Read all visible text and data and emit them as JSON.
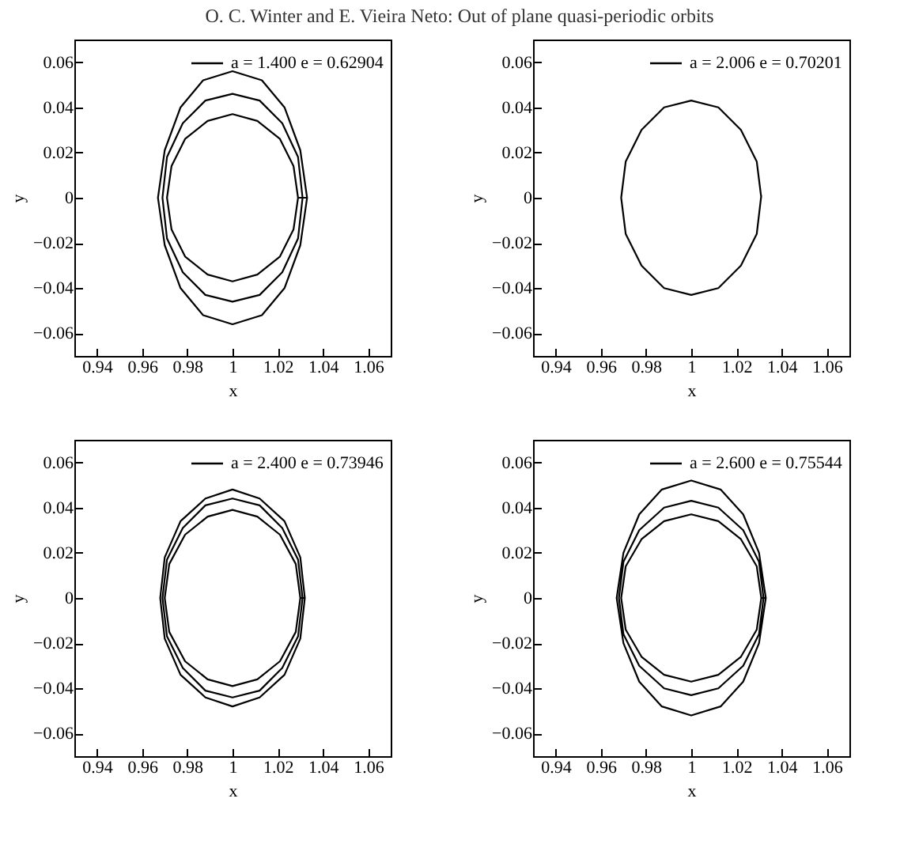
{
  "chart_data": [
    {
      "type": "line",
      "annotations": [
        "O. C. Winter and E. Vieira Neto: Out of plane quasi-periodic orbits"
      ],
      "xlabel": "x",
      "ylabel": "y",
      "xlim": [
        0.93,
        1.07
      ],
      "ylim": [
        -0.07,
        0.07
      ],
      "xticks": [
        0.94,
        0.96,
        0.98,
        1,
        1.02,
        1.04,
        1.06
      ],
      "yticks": [
        {
          "value": -0.06,
          "label": "−0.06"
        },
        {
          "value": -0.04,
          "label": "−0.04"
        },
        {
          "value": -0.02,
          "label": "−0.02"
        },
        0,
        0.02,
        0.04,
        0.06
      ],
      "grid": false,
      "legend": "top right",
      "marker": "none",
      "line_style": "solid",
      "series": [
        {
          "name": "a = 1.400 e = 0.62904",
          "color": "#000000",
          "x": [
            1.029,
            1.027,
            1.021,
            1.011,
            1,
            0.989,
            0.979,
            0.973,
            0.971,
            0.973,
            0.979,
            0.989,
            1,
            1.011,
            1.021,
            1.027,
            1.029,
            1.031,
            1.029,
            1.022,
            1.012,
            1,
            0.988,
            0.978,
            0.971,
            0.969,
            0.971,
            0.978,
            0.988,
            1,
            1.012,
            1.022,
            1.029,
            1.031,
            1.033,
            1.03,
            1.023,
            1.013,
            1,
            0.987,
            0.977,
            0.97,
            0.967,
            0.97,
            0.977,
            0.987,
            1,
            1.013,
            1.023,
            1.03,
            1.033
          ],
          "values": [
            0,
            0.014,
            0.026,
            0.034,
            0.037,
            0.034,
            0.026,
            0.014,
            0,
            -0.014,
            -0.026,
            -0.034,
            -0.037,
            -0.034,
            -0.026,
            -0.014,
            0,
            0,
            0.018,
            0.033,
            0.043,
            0.046,
            0.043,
            0.033,
            0.018,
            0,
            -0.018,
            -0.033,
            -0.043,
            -0.046,
            -0.043,
            -0.033,
            -0.018,
            0,
            0,
            0.021,
            0.04,
            0.052,
            0.056,
            0.052,
            0.04,
            0.021,
            0,
            -0.021,
            -0.04,
            -0.052,
            -0.056,
            -0.052,
            -0.04,
            -0.021,
            0
          ]
        }
      ]
    },
    {
      "type": "line",
      "xlabel": "x",
      "ylabel": "y",
      "xlim": [
        0.93,
        1.07
      ],
      "ylim": [
        -0.07,
        0.07
      ],
      "xticks": [
        0.94,
        0.96,
        0.98,
        1,
        1.02,
        1.04,
        1.06
      ],
      "yticks": [
        {
          "value": -0.06,
          "label": "−0.06"
        },
        {
          "value": -0.04,
          "label": "−0.04"
        },
        {
          "value": -0.02,
          "label": "−0.02"
        },
        0,
        0.02,
        0.04,
        0.06
      ],
      "grid": false,
      "legend": "top right",
      "marker": "none",
      "line_style": "solid",
      "series": [
        {
          "name": "a = 2.006 e = 0.70201",
          "color": "#000000",
          "x": [
            1.031,
            1.029,
            1.022,
            1.012,
            1,
            0.988,
            0.978,
            0.971,
            0.969,
            0.971,
            0.978,
            0.988,
            1,
            1.012,
            1.022,
            1.029,
            1.031
          ],
          "values": [
            0,
            0.016,
            0.03,
            0.04,
            0.043,
            0.04,
            0.03,
            0.016,
            0,
            -0.016,
            -0.03,
            -0.04,
            -0.043,
            -0.04,
            -0.03,
            -0.016,
            0.001
          ]
        }
      ]
    },
    {
      "type": "line",
      "xlabel": "x",
      "ylabel": "y",
      "xlim": [
        0.93,
        1.07
      ],
      "ylim": [
        -0.07,
        0.07
      ],
      "xticks": [
        0.94,
        0.96,
        0.98,
        1,
        1.02,
        1.04,
        1.06
      ],
      "yticks": [
        {
          "value": -0.06,
          "label": "−0.06"
        },
        {
          "value": -0.04,
          "label": "−0.04"
        },
        {
          "value": -0.02,
          "label": "−0.02"
        },
        0,
        0.02,
        0.04,
        0.06
      ],
      "grid": false,
      "legend": "top right",
      "marker": "none",
      "line_style": "solid",
      "series": [
        {
          "name": "a = 2.400 e = 0.73946",
          "color": "#000000",
          "x": [
            1.03,
            1.028,
            1.021,
            1.011,
            1,
            0.989,
            0.979,
            0.972,
            0.97,
            0.972,
            0.979,
            0.989,
            1,
            1.011,
            1.021,
            1.028,
            1.03,
            1.031,
            1.029,
            1.022,
            1.012,
            1,
            0.988,
            0.978,
            0.971,
            0.969,
            0.971,
            0.978,
            0.988,
            1,
            1.012,
            1.022,
            1.029,
            1.031,
            1.032,
            1.03,
            1.023,
            1.012,
            1,
            0.988,
            0.977,
            0.97,
            0.968,
            0.97,
            0.977,
            0.988,
            1,
            1.012,
            1.023,
            1.03,
            1.032
          ],
          "values": [
            0,
            0.015,
            0.028,
            0.036,
            0.039,
            0.036,
            0.028,
            0.015,
            0,
            -0.015,
            -0.028,
            -0.036,
            -0.039,
            -0.036,
            -0.028,
            -0.015,
            0,
            0,
            0.017,
            0.031,
            0.041,
            0.044,
            0.041,
            0.031,
            0.017,
            0,
            -0.017,
            -0.031,
            -0.041,
            -0.044,
            -0.041,
            -0.031,
            -0.017,
            0,
            0,
            0.018,
            0.034,
            0.044,
            0.048,
            0.044,
            0.034,
            0.018,
            0,
            -0.018,
            -0.034,
            -0.044,
            -0.048,
            -0.044,
            -0.034,
            -0.018,
            0
          ]
        }
      ]
    },
    {
      "type": "line",
      "xlabel": "x",
      "ylabel": "y",
      "xlim": [
        0.93,
        1.07
      ],
      "ylim": [
        -0.07,
        0.07
      ],
      "xticks": [
        0.94,
        0.96,
        0.98,
        1,
        1.02,
        1.04,
        1.06
      ],
      "yticks": [
        {
          "value": -0.06,
          "label": "−0.06"
        },
        {
          "value": -0.04,
          "label": "−0.04"
        },
        {
          "value": -0.02,
          "label": "−0.02"
        },
        0,
        0.02,
        0.04,
        0.06
      ],
      "grid": false,
      "legend": "top right",
      "marker": "none",
      "line_style": "solid",
      "series": [
        {
          "name": "a = 2.600 e = 0.75544",
          "color": "#000000",
          "x": [
            1.031,
            1.029,
            1.022,
            1.012,
            1,
            0.988,
            0.978,
            0.971,
            0.969,
            0.971,
            0.978,
            0.988,
            1,
            1.012,
            1.022,
            1.029,
            1.031,
            1.032,
            1.03,
            1.023,
            1.012,
            1,
            0.988,
            0.977,
            0.97,
            0.968,
            0.97,
            0.977,
            0.988,
            1,
            1.012,
            1.023,
            1.03,
            1.032,
            1.033,
            1.03,
            1.023,
            1.013,
            1,
            0.987,
            0.977,
            0.97,
            0.967,
            0.97,
            0.977,
            0.987,
            1,
            1.013,
            1.023,
            1.03,
            1.033
          ],
          "values": [
            0,
            0.014,
            0.026,
            0.034,
            0.037,
            0.034,
            0.026,
            0.014,
            0,
            -0.014,
            -0.026,
            -0.034,
            -0.037,
            -0.034,
            -0.026,
            -0.014,
            0,
            0,
            0.016,
            0.03,
            0.04,
            0.043,
            0.04,
            0.03,
            0.016,
            0,
            -0.016,
            -0.03,
            -0.04,
            -0.043,
            -0.04,
            -0.03,
            -0.016,
            0,
            0,
            0.02,
            0.037,
            0.048,
            0.052,
            0.048,
            0.037,
            0.02,
            0,
            -0.02,
            -0.037,
            -0.048,
            -0.052,
            -0.048,
            -0.037,
            -0.02,
            0
          ]
        }
      ]
    }
  ]
}
